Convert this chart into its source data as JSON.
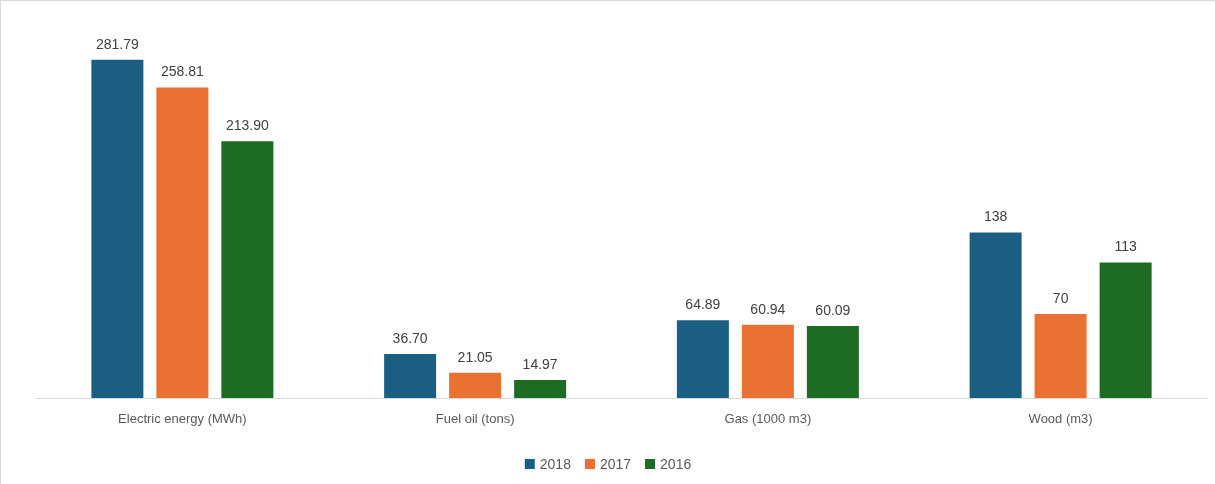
{
  "chart_data": {
    "type": "bar",
    "categories": [
      "Electric energy (MWh)",
      "Fuel oil (tons)",
      "Gas (1000 m3)",
      "Wood (m3)"
    ],
    "series": [
      {
        "name": "2018",
        "color": "#1a5f82",
        "values": [
          281.79,
          36.7,
          64.89,
          138
        ],
        "value_labels": [
          "281.79",
          "36.70",
          "64.89",
          "138"
        ]
      },
      {
        "name": "2017",
        "color": "#e97132",
        "values": [
          258.81,
          21.05,
          60.94,
          70
        ],
        "value_labels": [
          "258.81",
          "21.05",
          "60.94",
          "70"
        ]
      },
      {
        "name": "2016",
        "color": "#1e6b24",
        "values": [
          213.9,
          14.97,
          60.09,
          113
        ],
        "value_labels": [
          "213.90",
          "14.97",
          "60.09",
          "113"
        ]
      }
    ],
    "legend": "bottom",
    "tick_labels": "x"
  }
}
